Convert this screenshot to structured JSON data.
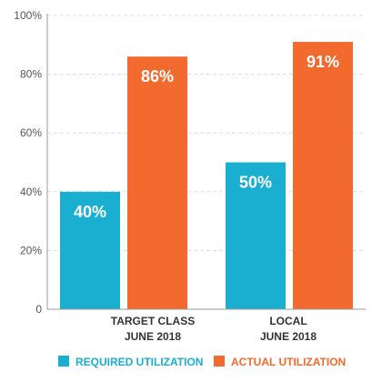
{
  "chart_data": {
    "type": "bar",
    "categories": [
      [
        "TARGET CLASS",
        "JUNE 2018"
      ],
      [
        "LOCAL",
        "JUNE 2018"
      ]
    ],
    "series": [
      {
        "name": "REQUIRED UTILIZATION",
        "values": [
          40,
          50
        ],
        "labels": [
          "40%",
          "50%"
        ],
        "color": "#1aaed0"
      },
      {
        "name": "ACTUAL UTILIZATION",
        "values": [
          86,
          91
        ],
        "labels": [
          "86%",
          "91%"
        ],
        "color": "#f26a2e"
      }
    ],
    "yticks": [
      {
        "value": 0,
        "label": "0"
      },
      {
        "value": 20,
        "label": "20%"
      },
      {
        "value": 40,
        "label": "40%"
      },
      {
        "value": 60,
        "label": "60%"
      },
      {
        "value": 80,
        "label": "80%"
      },
      {
        "value": 100,
        "label": "100%"
      }
    ],
    "ylim": [
      0,
      100
    ],
    "grid": "horizontal-dashed",
    "legend_position": "bottom",
    "title": "",
    "xlabel": "",
    "ylabel": ""
  }
}
